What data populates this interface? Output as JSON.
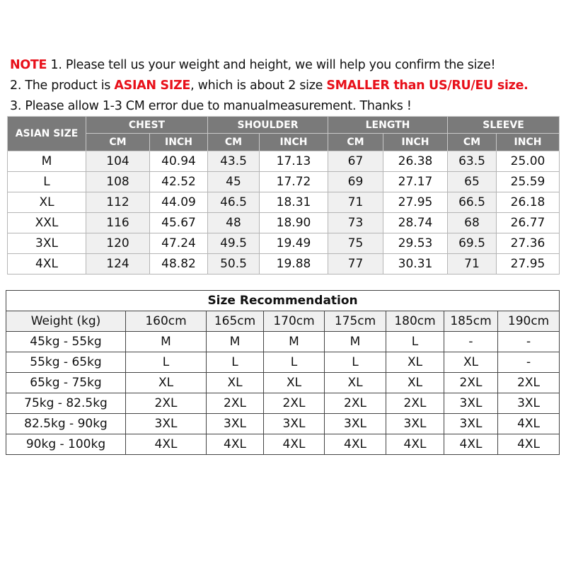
{
  "notes": {
    "line1": {
      "prefix": "NOTE",
      "text": " 1. Please tell us your weight and height, we will help you confirm the size!"
    },
    "line2": {
      "a": "2. The product is ",
      "b": "ASIAN SIZE",
      "c": ", which is about 2 size ",
      "d": "SMALLER than US/RU/EU size",
      "e": "."
    },
    "line3": "3. Please allow 1-3 CM error due to manualmeasurement.  Thanks !"
  },
  "colors": {
    "accent_red": "#e8101a",
    "header_gray": "#7a7a7a",
    "cell_gray": "#f0f0f0"
  },
  "size_table": {
    "size_header": "ASIAN SIZE",
    "groups": [
      "CHEST",
      "SHOULDER",
      "LENGTH",
      "SLEEVE"
    ],
    "units": [
      "CM",
      "INCH"
    ],
    "rows": [
      [
        "M",
        "104",
        "40.94",
        "43.5",
        "17.13",
        "67",
        "26.38",
        "63.5",
        "25.00"
      ],
      [
        "L",
        "108",
        "42.52",
        "45",
        "17.72",
        "69",
        "27.17",
        "65",
        "25.59"
      ],
      [
        "XL",
        "112",
        "44.09",
        "46.5",
        "18.31",
        "71",
        "27.95",
        "66.5",
        "26.18"
      ],
      [
        "XXL",
        "116",
        "45.67",
        "48",
        "18.90",
        "73",
        "28.74",
        "68",
        "26.77"
      ],
      [
        "3XL",
        "120",
        "47.24",
        "49.5",
        "19.49",
        "75",
        "29.53",
        "69.5",
        "27.36"
      ],
      [
        "4XL",
        "124",
        "48.82",
        "50.5",
        "19.88",
        "77",
        "30.31",
        "71",
        "27.95"
      ]
    ]
  },
  "recommendation": {
    "title": "Size Recommendation",
    "headers": [
      "Weight (kg)",
      "160cm",
      "165cm",
      "170cm",
      "175cm",
      "180cm",
      "185cm",
      "190cm"
    ],
    "rows": [
      [
        "45kg - 55kg",
        "M",
        "M",
        "M",
        "M",
        "L",
        "-",
        "-"
      ],
      [
        "55kg - 65kg",
        "L",
        "L",
        "L",
        "L",
        "XL",
        "XL",
        "-"
      ],
      [
        "65kg - 75kg",
        "XL",
        "XL",
        "XL",
        "XL",
        "XL",
        "2XL",
        "2XL"
      ],
      [
        "75kg - 82.5kg",
        "2XL",
        "2XL",
        "2XL",
        "2XL",
        "2XL",
        "3XL",
        "3XL"
      ],
      [
        "82.5kg - 90kg",
        "3XL",
        "3XL",
        "3XL",
        "3XL",
        "3XL",
        "3XL",
        "4XL"
      ],
      [
        "90kg - 100kg",
        "4XL",
        "4XL",
        "4XL",
        "4XL",
        "4XL",
        "4XL",
        "4XL"
      ]
    ]
  }
}
